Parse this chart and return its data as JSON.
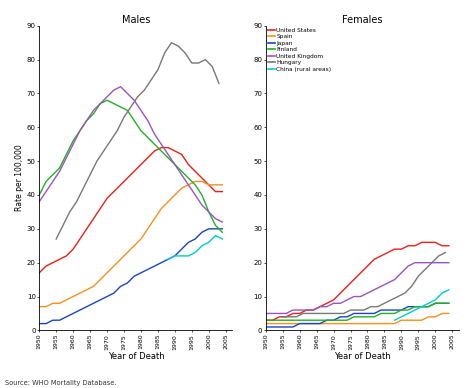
{
  "title_males": "Males",
  "title_females": "Females",
  "xlabel": "Year of Death",
  "ylabel": "Rate per 100,000",
  "source": "Source: WHO Mortality Database.",
  "ylim": [
    0,
    90
  ],
  "yticks": [
    0,
    10,
    20,
    30,
    40,
    50,
    60,
    70,
    80,
    90
  ],
  "xticks": [
    1950,
    1955,
    1960,
    1965,
    1970,
    1975,
    1980,
    1985,
    1990,
    1995,
    2000,
    2005
  ],
  "xlim": [
    1950,
    2007
  ],
  "countries": [
    "United States",
    "Spain",
    "Japan",
    "Finland",
    "United Kingdom",
    "Hungary",
    "China (rural areas)"
  ],
  "colors": [
    "#e8201a",
    "#f59020",
    "#1845c0",
    "#22b025",
    "#9955bb",
    "#777777",
    "#00cccc"
  ],
  "background": "#ffffff",
  "males": {
    "United States": {
      "years": [
        1950,
        1952,
        1954,
        1956,
        1958,
        1960,
        1962,
        1964,
        1966,
        1968,
        1970,
        1972,
        1974,
        1976,
        1978,
        1980,
        1982,
        1984,
        1986,
        1988,
        1990,
        1992,
        1994,
        1996,
        1998,
        2000,
        2002,
        2004
      ],
      "rates": [
        17,
        19,
        20,
        21,
        22,
        24,
        27,
        30,
        33,
        36,
        39,
        41,
        43,
        45,
        47,
        49,
        51,
        53,
        54,
        54,
        53,
        52,
        49,
        47,
        45,
        43,
        41,
        41
      ]
    },
    "Spain": {
      "years": [
        1950,
        1952,
        1954,
        1956,
        1958,
        1960,
        1962,
        1964,
        1966,
        1968,
        1970,
        1972,
        1974,
        1976,
        1978,
        1980,
        1982,
        1984,
        1986,
        1988,
        1990,
        1992,
        1994,
        1996,
        1998,
        2000,
        2002,
        2004
      ],
      "rates": [
        7,
        7,
        8,
        8,
        9,
        10,
        11,
        12,
        13,
        15,
        17,
        19,
        21,
        23,
        25,
        27,
        30,
        33,
        36,
        38,
        40,
        42,
        43,
        44,
        44,
        43,
        43,
        43
      ]
    },
    "Japan": {
      "years": [
        1950,
        1952,
        1954,
        1956,
        1958,
        1960,
        1962,
        1964,
        1966,
        1968,
        1970,
        1972,
        1974,
        1976,
        1978,
        1980,
        1982,
        1984,
        1986,
        1988,
        1990,
        1992,
        1994,
        1996,
        1998,
        2000,
        2002,
        2004
      ],
      "rates": [
        2,
        2,
        3,
        3,
        4,
        5,
        6,
        7,
        8,
        9,
        10,
        11,
        13,
        14,
        16,
        17,
        18,
        19,
        20,
        21,
        22,
        24,
        26,
        27,
        29,
        30,
        30,
        30
      ]
    },
    "Finland": {
      "years": [
        1950,
        1952,
        1954,
        1956,
        1958,
        1960,
        1962,
        1964,
        1966,
        1968,
        1970,
        1972,
        1974,
        1976,
        1978,
        1980,
        1982,
        1984,
        1986,
        1988,
        1990,
        1992,
        1994,
        1996,
        1998,
        2000,
        2002,
        2004
      ],
      "rates": [
        40,
        44,
        46,
        48,
        52,
        56,
        59,
        62,
        64,
        67,
        68,
        67,
        66,
        65,
        62,
        59,
        57,
        55,
        53,
        51,
        49,
        47,
        45,
        43,
        40,
        35,
        31,
        29
      ]
    },
    "United Kingdom": {
      "years": [
        1950,
        1952,
        1954,
        1956,
        1958,
        1960,
        1962,
        1964,
        1966,
        1968,
        1970,
        1972,
        1974,
        1976,
        1978,
        1980,
        1982,
        1984,
        1986,
        1988,
        1990,
        1992,
        1994,
        1996,
        1998,
        2000,
        2002,
        2004
      ],
      "rates": [
        38,
        41,
        44,
        47,
        51,
        55,
        59,
        62,
        65,
        67,
        69,
        71,
        72,
        70,
        68,
        65,
        62,
        58,
        55,
        52,
        49,
        46,
        43,
        40,
        37,
        35,
        33,
        32
      ]
    },
    "Hungary": {
      "years": [
        1955,
        1957,
        1959,
        1961,
        1963,
        1965,
        1967,
        1969,
        1971,
        1973,
        1975,
        1977,
        1979,
        1981,
        1983,
        1985,
        1987,
        1989,
        1991,
        1993,
        1995,
        1997,
        1999,
        2001,
        2003
      ],
      "rates": [
        27,
        31,
        35,
        38,
        42,
        46,
        50,
        53,
        56,
        59,
        63,
        66,
        69,
        71,
        74,
        77,
        82,
        85,
        84,
        82,
        79,
        79,
        80,
        78,
        73
      ]
    },
    "China (rural areas)": {
      "years": [
        1988,
        1990,
        1992,
        1994,
        1996,
        1998,
        2000,
        2002,
        2004
      ],
      "rates": [
        21,
        22,
        22,
        22,
        23,
        25,
        26,
        28,
        27
      ]
    }
  },
  "females": {
    "United States": {
      "years": [
        1950,
        1952,
        1954,
        1956,
        1958,
        1960,
        1962,
        1964,
        1966,
        1968,
        1970,
        1972,
        1974,
        1976,
        1978,
        1980,
        1982,
        1984,
        1986,
        1988,
        1990,
        1992,
        1994,
        1996,
        1998,
        2000,
        2002,
        2004
      ],
      "rates": [
        3,
        3,
        4,
        4,
        5,
        5,
        6,
        6,
        7,
        8,
        9,
        11,
        13,
        15,
        17,
        19,
        21,
        22,
        23,
        24,
        24,
        25,
        25,
        26,
        26,
        26,
        25,
        25
      ]
    },
    "Spain": {
      "years": [
        1950,
        1952,
        1954,
        1956,
        1958,
        1960,
        1962,
        1964,
        1966,
        1968,
        1970,
        1972,
        1974,
        1976,
        1978,
        1980,
        1982,
        1984,
        1986,
        1988,
        1990,
        1992,
        1994,
        1996,
        1998,
        2000,
        2002,
        2004
      ],
      "rates": [
        2,
        2,
        2,
        2,
        2,
        2,
        2,
        2,
        2,
        2,
        2,
        2,
        2,
        2,
        2,
        2,
        2,
        2,
        2,
        2,
        3,
        3,
        3,
        3,
        4,
        4,
        5,
        5
      ]
    },
    "Japan": {
      "years": [
        1950,
        1952,
        1954,
        1956,
        1958,
        1960,
        1962,
        1964,
        1966,
        1968,
        1970,
        1972,
        1974,
        1976,
        1978,
        1980,
        1982,
        1984,
        1986,
        1988,
        1990,
        1992,
        1994,
        1996,
        1998,
        2000,
        2002,
        2004
      ],
      "rates": [
        1,
        1,
        1,
        1,
        1,
        2,
        2,
        2,
        2,
        3,
        3,
        4,
        4,
        5,
        5,
        5,
        5,
        6,
        6,
        6,
        6,
        7,
        7,
        7,
        7,
        8,
        8,
        8
      ]
    },
    "Finland": {
      "years": [
        1950,
        1952,
        1954,
        1956,
        1958,
        1960,
        1962,
        1964,
        1966,
        1968,
        1970,
        1972,
        1974,
        1976,
        1978,
        1980,
        1982,
        1984,
        1986,
        1988,
        1990,
        1992,
        1994,
        1996,
        1998,
        2000,
        2002,
        2004
      ],
      "rates": [
        3,
        3,
        3,
        3,
        3,
        3,
        3,
        3,
        3,
        3,
        3,
        3,
        3,
        4,
        4,
        4,
        4,
        5,
        5,
        5,
        6,
        6,
        7,
        7,
        7,
        8,
        8,
        8
      ]
    },
    "United Kingdom": {
      "years": [
        1950,
        1952,
        1954,
        1956,
        1958,
        1960,
        1962,
        1964,
        1966,
        1968,
        1970,
        1972,
        1974,
        1976,
        1978,
        1980,
        1982,
        1984,
        1986,
        1988,
        1990,
        1992,
        1994,
        1996,
        1998,
        2000,
        2002,
        2004
      ],
      "rates": [
        5,
        5,
        5,
        5,
        6,
        6,
        6,
        6,
        7,
        7,
        8,
        8,
        9,
        10,
        10,
        11,
        12,
        13,
        14,
        15,
        17,
        19,
        20,
        20,
        20,
        20,
        20,
        20
      ]
    },
    "Hungary": {
      "years": [
        1955,
        1957,
        1959,
        1961,
        1963,
        1965,
        1967,
        1969,
        1971,
        1973,
        1975,
        1977,
        1979,
        1981,
        1983,
        1985,
        1987,
        1989,
        1991,
        1993,
        1995,
        1997,
        1999,
        2001,
        2003
      ],
      "rates": [
        4,
        4,
        4,
        5,
        5,
        5,
        5,
        5,
        5,
        5,
        6,
        6,
        6,
        7,
        7,
        8,
        9,
        10,
        11,
        13,
        16,
        18,
        20,
        22,
        23
      ]
    },
    "China (rural areas)": {
      "years": [
        1988,
        1990,
        1992,
        1994,
        1996,
        1998,
        2000,
        2002,
        2004
      ],
      "rates": [
        3,
        4,
        5,
        6,
        7,
        8,
        9,
        11,
        12
      ]
    }
  }
}
